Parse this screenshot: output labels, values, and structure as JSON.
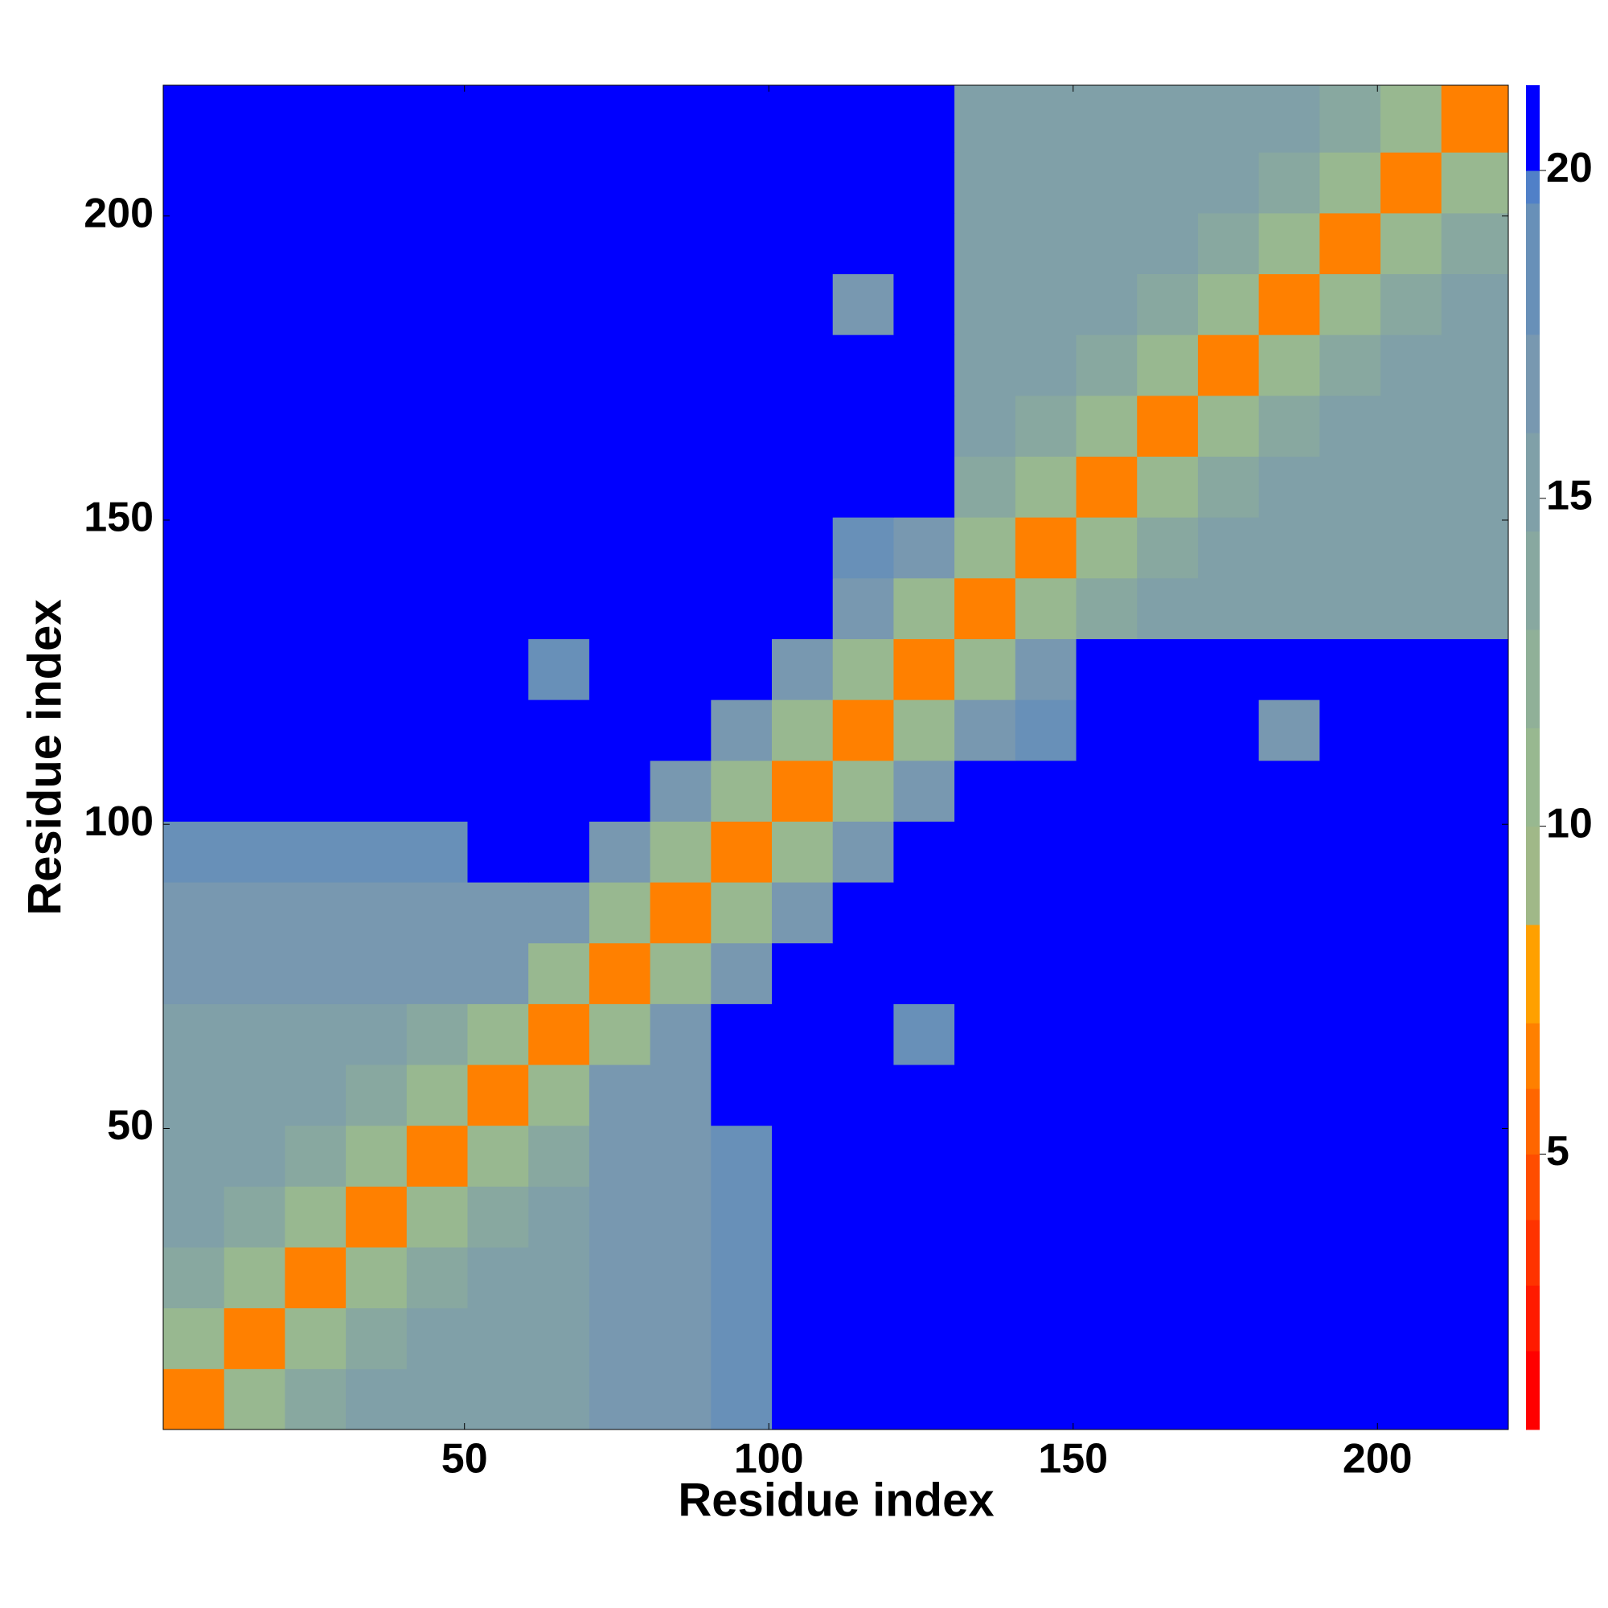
{
  "chart_data": {
    "type": "heatmap",
    "x_label": "Residue index",
    "y_label": "Residue index",
    "xbins": [
      0.5,
      10.5,
      20.5,
      30.5,
      40.5,
      50.5,
      60.5,
      70.5,
      80.5,
      90.5,
      100.5,
      110.5,
      120.5,
      130.5,
      140.5,
      150.5,
      160.5,
      170.5,
      180.5,
      190.5,
      200.5,
      210.5,
      221.5
    ],
    "ybins": [
      0.5,
      10.5,
      20.5,
      30.5,
      40.5,
      50.5,
      60.5,
      70.5,
      80.5,
      90.5,
      100.5,
      110.5,
      120.5,
      130.5,
      140.5,
      150.5,
      160.5,
      170.5,
      180.5,
      190.5,
      200.5,
      210.5,
      221.5
    ],
    "z": [
      [
        6,
        10,
        13,
        15,
        15,
        15,
        15,
        17,
        17,
        18,
        21,
        21,
        21,
        21,
        21,
        21,
        21,
        20.5,
        20.5,
        20.5,
        20.5,
        21
      ],
      [
        10,
        6,
        10,
        13,
        15,
        15,
        15,
        17,
        17,
        18,
        21,
        21,
        21,
        21,
        21,
        21,
        21,
        20.5,
        20.5,
        20.5,
        20.5,
        21
      ],
      [
        13,
        10,
        6,
        10,
        13,
        15,
        15,
        17,
        17,
        18,
        21,
        21,
        21,
        21,
        21,
        21,
        21,
        20.5,
        20.5,
        20.5,
        20.5,
        21
      ],
      [
        15,
        13,
        10,
        6,
        10,
        13,
        15,
        17,
        17,
        18,
        21,
        21,
        21,
        21,
        21,
        21,
        21,
        20.5,
        20.5,
        20.5,
        20.5,
        21
      ],
      [
        15,
        15,
        13,
        10,
        6,
        10,
        13,
        17,
        17,
        18,
        21,
        21,
        21,
        21,
        21,
        21,
        21,
        20.5,
        20.5,
        20.5,
        20.5,
        21
      ],
      [
        15,
        15,
        15,
        13,
        10,
        6,
        10,
        17,
        17,
        21,
        21,
        21,
        21,
        21,
        21,
        21,
        21,
        21,
        21,
        21,
        21,
        21
      ],
      [
        15,
        15,
        15,
        15,
        13,
        10,
        6,
        11,
        17,
        21,
        21,
        21,
        18,
        21,
        21,
        21,
        21,
        21,
        21,
        21,
        21,
        21
      ],
      [
        17,
        17,
        17,
        17,
        17,
        17,
        11,
        6,
        11,
        17,
        21,
        21,
        21,
        21,
        21,
        21,
        21,
        21,
        21,
        21,
        21,
        21
      ],
      [
        17,
        17,
        17,
        17,
        17,
        17,
        17,
        11,
        6,
        11,
        17,
        21,
        21,
        21,
        21,
        21,
        21,
        21,
        21,
        21,
        21,
        21
      ],
      [
        18,
        18,
        18,
        18,
        18,
        21,
        21,
        17,
        11,
        6,
        11,
        17,
        21,
        21,
        21,
        21,
        21,
        21,
        21,
        21,
        21,
        21
      ],
      [
        21,
        21,
        21,
        21,
        21,
        21,
        21,
        21,
        17,
        11,
        6,
        11,
        17,
        21,
        21,
        21,
        21,
        21,
        21,
        21,
        21,
        21
      ],
      [
        21,
        21,
        21,
        21,
        21,
        21,
        21,
        21,
        21,
        17,
        11,
        6,
        11,
        17,
        19,
        21,
        21,
        21,
        16,
        21,
        21,
        21
      ],
      [
        21,
        21,
        21,
        21,
        21,
        21,
        18,
        21,
        21,
        21,
        17,
        11,
        6,
        11,
        17,
        21,
        21,
        21,
        21,
        21,
        21,
        21
      ],
      [
        21,
        21,
        21,
        21,
        21,
        21,
        21,
        21,
        21,
        21,
        21,
        17,
        11,
        6,
        10,
        13,
        15,
        15,
        15,
        15,
        15,
        15
      ],
      [
        21,
        21,
        21,
        21,
        21,
        21,
        21,
        21,
        21,
        21,
        21,
        19,
        17,
        10,
        6,
        10,
        13,
        15,
        15,
        15,
        15,
        15
      ],
      [
        21,
        21,
        21,
        21,
        21,
        21,
        21,
        21,
        21,
        21,
        21,
        21,
        21,
        13,
        10,
        6,
        10,
        13,
        15,
        15,
        15,
        15
      ],
      [
        21,
        21,
        21,
        21,
        21,
        21,
        21,
        21,
        21,
        21,
        21,
        21,
        21,
        15,
        13,
        10,
        6,
        10,
        13,
        15,
        15,
        15
      ],
      [
        20.5,
        20.5,
        20.5,
        20.5,
        20.5,
        21,
        21,
        21,
        21,
        21,
        21,
        21,
        21,
        15,
        15,
        13,
        10,
        6,
        10,
        13,
        15,
        15
      ],
      [
        20.5,
        20.5,
        20.5,
        20.5,
        20.5,
        21,
        21,
        21,
        21,
        21,
        21,
        16,
        21,
        15,
        15,
        15,
        13,
        10,
        6,
        10,
        13,
        15
      ],
      [
        20.5,
        20.5,
        20.5,
        20.5,
        20.5,
        21,
        21,
        21,
        21,
        21,
        21,
        21,
        21,
        15,
        15,
        15,
        15,
        13,
        10,
        6,
        10,
        13
      ],
      [
        20.5,
        20.5,
        20.5,
        20.5,
        20.5,
        21,
        21,
        21,
        21,
        21,
        21,
        21,
        21,
        15,
        15,
        15,
        15,
        15,
        13,
        10,
        6,
        10
      ],
      [
        21,
        21,
        21,
        21,
        21,
        21,
        21,
        21,
        21,
        21,
        21,
        21,
        21,
        15,
        15,
        15,
        15,
        15,
        15,
        13,
        10,
        6
      ]
    ],
    "xlim": [
      0.5,
      221.5
    ],
    "ylim": [
      0.5,
      221.5
    ],
    "xticks": [
      50,
      100,
      150,
      200
    ],
    "yticks": [
      50,
      100,
      150,
      200
    ],
    "zlim": [
      0.8,
      21.3
    ],
    "zticks": [
      5,
      10,
      15,
      20
    ],
    "color_levels": [
      0.8,
      2,
      3,
      4,
      5,
      6,
      7,
      8.5,
      10,
      11.5,
      13,
      14.5,
      16,
      17.5,
      19.5,
      20,
      21.3
    ],
    "colors": [
      "#ff0000",
      "#ff1a00",
      "#ff3300",
      "#ff4d00",
      "#ff6600",
      "#ff8000",
      "#ffa000",
      "#a0b888",
      "#98b890",
      "#90b098",
      "#88a8a0",
      "#80a0a8",
      "#7898b0",
      "#6890b8",
      "#5080c8",
      "#0000ff"
    ]
  }
}
